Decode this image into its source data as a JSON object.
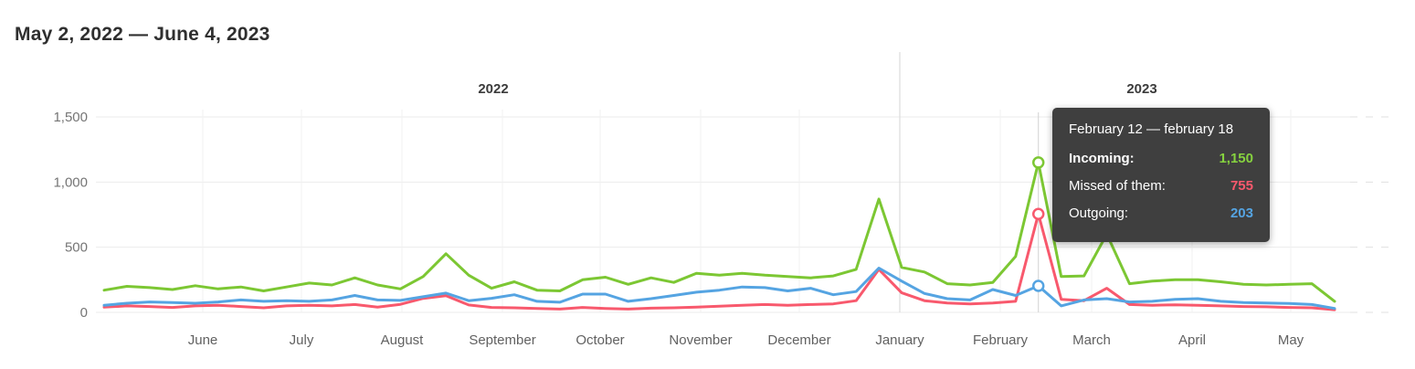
{
  "page": {
    "title": "May 2, 2022 — June 4, 2023"
  },
  "tooltip": {
    "title": "February 12 — february 18",
    "rows": [
      {
        "label": "Incoming:",
        "value": "1,150"
      },
      {
        "label": "Missed of them:",
        "value": "755"
      },
      {
        "label": "Outgoing:",
        "value": "203"
      }
    ]
  },
  "chart_data": {
    "type": "line",
    "title": "May 2, 2022 — June 4, 2023",
    "x_unit": "week",
    "x_start_week": "2022-05-02",
    "ylim": [
      0,
      1500
    ],
    "grid": true,
    "legend_position": "none (tooltip only)",
    "yticks": {
      "values": [
        1500,
        1000,
        500,
        0
      ],
      "labels": [
        "1,500",
        "1,000",
        "500",
        "0"
      ]
    },
    "month_labels": [
      "June",
      "July",
      "August",
      "September",
      "October",
      "November",
      "December",
      "January",
      "February",
      "March",
      "April",
      "May"
    ],
    "month_x": [
      222,
      330,
      440,
      550,
      657,
      767,
      875,
      985,
      1095,
      1195,
      1305,
      1413
    ],
    "year_labels": [
      {
        "label": "2022",
        "x": 540
      },
      {
        "label": "2023",
        "x": 1250
      }
    ],
    "year_divider_x": 985,
    "hover_index": 41,
    "hover_week_label": "February 12 — february 18",
    "series": [
      {
        "name": "Incoming",
        "color": "#7cc733",
        "values": [
          170,
          200,
          190,
          175,
          205,
          180,
          195,
          165,
          195,
          225,
          210,
          265,
          210,
          180,
          275,
          450,
          285,
          185,
          235,
          170,
          165,
          250,
          270,
          215,
          265,
          230,
          300,
          285,
          300,
          285,
          275,
          265,
          280,
          330,
          870,
          345,
          310,
          220,
          210,
          230,
          430,
          1150,
          275,
          280,
          600,
          220,
          240,
          250,
          250,
          235,
          215,
          210,
          215,
          220,
          85
        ]
      },
      {
        "name": "Missed of them",
        "color": "#f8596d",
        "values": [
          40,
          50,
          45,
          38,
          50,
          55,
          45,
          35,
          50,
          55,
          50,
          60,
          40,
          62,
          107,
          128,
          57,
          38,
          35,
          30,
          25,
          38,
          30,
          25,
          32,
          35,
          40,
          48,
          55,
          60,
          55,
          60,
          65,
          90,
          330,
          150,
          90,
          72,
          65,
          72,
          85,
          755,
          100,
          90,
          185,
          60,
          55,
          58,
          55,
          50,
          45,
          43,
          38,
          35,
          20
        ]
      },
      {
        "name": "Outgoing",
        "color": "#55a4e2",
        "values": [
          55,
          70,
          80,
          75,
          70,
          80,
          95,
          85,
          90,
          85,
          95,
          130,
          95,
          92,
          120,
          148,
          90,
          108,
          135,
          85,
          78,
          140,
          140,
          85,
          105,
          130,
          155,
          170,
          195,
          190,
          165,
          185,
          135,
          160,
          340,
          240,
          145,
          105,
          95,
          175,
          130,
          203,
          50,
          95,
          105,
          80,
          85,
          100,
          105,
          85,
          75,
          72,
          68,
          60,
          30
        ]
      }
    ]
  }
}
